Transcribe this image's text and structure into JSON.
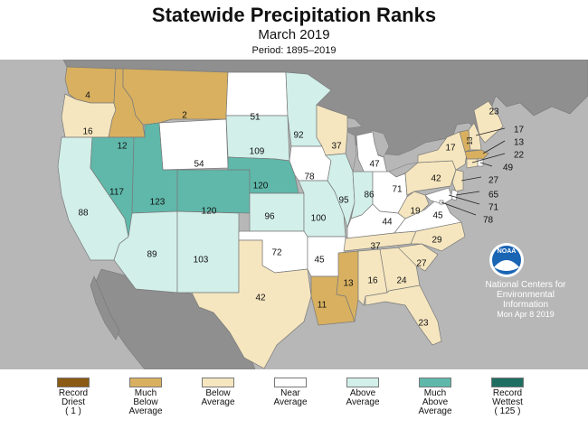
{
  "title": "Statewide Precipitation Ranks",
  "subtitle": "March 2019",
  "period": "Period: 1895–2019",
  "credit": {
    "line1": "National Centers for",
    "line2": "Environmental",
    "line3": "Information",
    "date": "Mon Apr  8 2019",
    "logo_text": "NOAA"
  },
  "colors": {
    "background_ocean": "#b7b7b7",
    "neighbor_land": "#8f8f8f",
    "record_driest": "#8b5a14",
    "much_below": "#d8b060",
    "below": "#f6e6bf",
    "near": "#ffffff",
    "above": "#d2efe9",
    "much_above": "#5fb8aa",
    "record_wettest": "#1f6e62"
  },
  "legend": [
    {
      "label": "Record\nDriest\n( 1 )",
      "color": "#8b5a14"
    },
    {
      "label": "Much\nBelow\nAverage",
      "color": "#d8b060"
    },
    {
      "label": "Below\nAverage",
      "color": "#f6e6bf"
    },
    {
      "label": "Near\nAverage",
      "color": "#ffffff"
    },
    {
      "label": "Above\nAverage",
      "color": "#d2efe9"
    },
    {
      "label": "Much\nAbove\nAverage",
      "color": "#5fb8aa"
    },
    {
      "label": "Record\nWettest\n( 125 )",
      "color": "#1f6e62"
    }
  ],
  "states": {
    "WA": {
      "rank": "4",
      "category": "much_below"
    },
    "OR": {
      "rank": "16",
      "category": "below"
    },
    "CA": {
      "rank": "88",
      "category": "above"
    },
    "ID": {
      "rank": "12",
      "category": "much_below"
    },
    "NV": {
      "rank": "117",
      "category": "much_above"
    },
    "MT": {
      "rank": "2",
      "category": "much_below"
    },
    "WY": {
      "rank": "54",
      "category": "near"
    },
    "UT": {
      "rank": "123",
      "category": "much_above"
    },
    "CO": {
      "rank": "120",
      "category": "much_above"
    },
    "AZ": {
      "rank": "89",
      "category": "above"
    },
    "NM": {
      "rank": "103",
      "category": "above"
    },
    "ND": {
      "rank": "51",
      "category": "near"
    },
    "SD": {
      "rank": "109",
      "category": "above"
    },
    "NE": {
      "rank": "120",
      "category": "much_above"
    },
    "KS": {
      "rank": "96",
      "category": "above"
    },
    "OK": {
      "rank": "72",
      "category": "near"
    },
    "TX": {
      "rank": "42",
      "category": "below"
    },
    "MN": {
      "rank": "92",
      "category": "above"
    },
    "IA": {
      "rank": "78",
      "category": "near"
    },
    "MO": {
      "rank": "100",
      "category": "above"
    },
    "AR": {
      "rank": "45",
      "category": "near"
    },
    "LA": {
      "rank": "11",
      "category": "much_below"
    },
    "WI": {
      "rank": "37",
      "category": "below"
    },
    "IL": {
      "rank": "95",
      "category": "above"
    },
    "MI": {
      "rank": "47",
      "category": "near"
    },
    "IN": {
      "rank": "86",
      "category": "above"
    },
    "OH": {
      "rank": "71",
      "category": "near"
    },
    "KY": {
      "rank": "44",
      "category": "near"
    },
    "TN": {
      "rank": "37",
      "category": "below"
    },
    "MS": {
      "rank": "13",
      "category": "much_below"
    },
    "AL": {
      "rank": "16",
      "category": "below"
    },
    "GA": {
      "rank": "24",
      "category": "below"
    },
    "FL": {
      "rank": "23",
      "category": "below"
    },
    "SC": {
      "rank": "27",
      "category": "below"
    },
    "NC": {
      "rank": "29",
      "category": "below"
    },
    "VA": {
      "rank": "45",
      "category": "near"
    },
    "WV": {
      "rank": "19",
      "category": "below"
    },
    "PA": {
      "rank": "42",
      "category": "below"
    },
    "NY": {
      "rank": "17",
      "category": "below"
    },
    "ME": {
      "rank": "23",
      "category": "below"
    },
    "VT": {
      "rank": "13",
      "category": "much_below"
    },
    "NH": {
      "rank": "17",
      "category": "below"
    },
    "MA": {
      "rank": "13",
      "category": "much_below"
    },
    "CT": {
      "rank": "22",
      "category": "below"
    },
    "RI": {
      "rank": "49",
      "category": "near"
    },
    "NJ": {
      "rank": "27",
      "category": "below"
    },
    "DE": {
      "rank": "65",
      "category": "near"
    },
    "MD": {
      "rank": "71",
      "category": "near"
    },
    "DC": {
      "rank": "78",
      "category": "near"
    }
  }
}
